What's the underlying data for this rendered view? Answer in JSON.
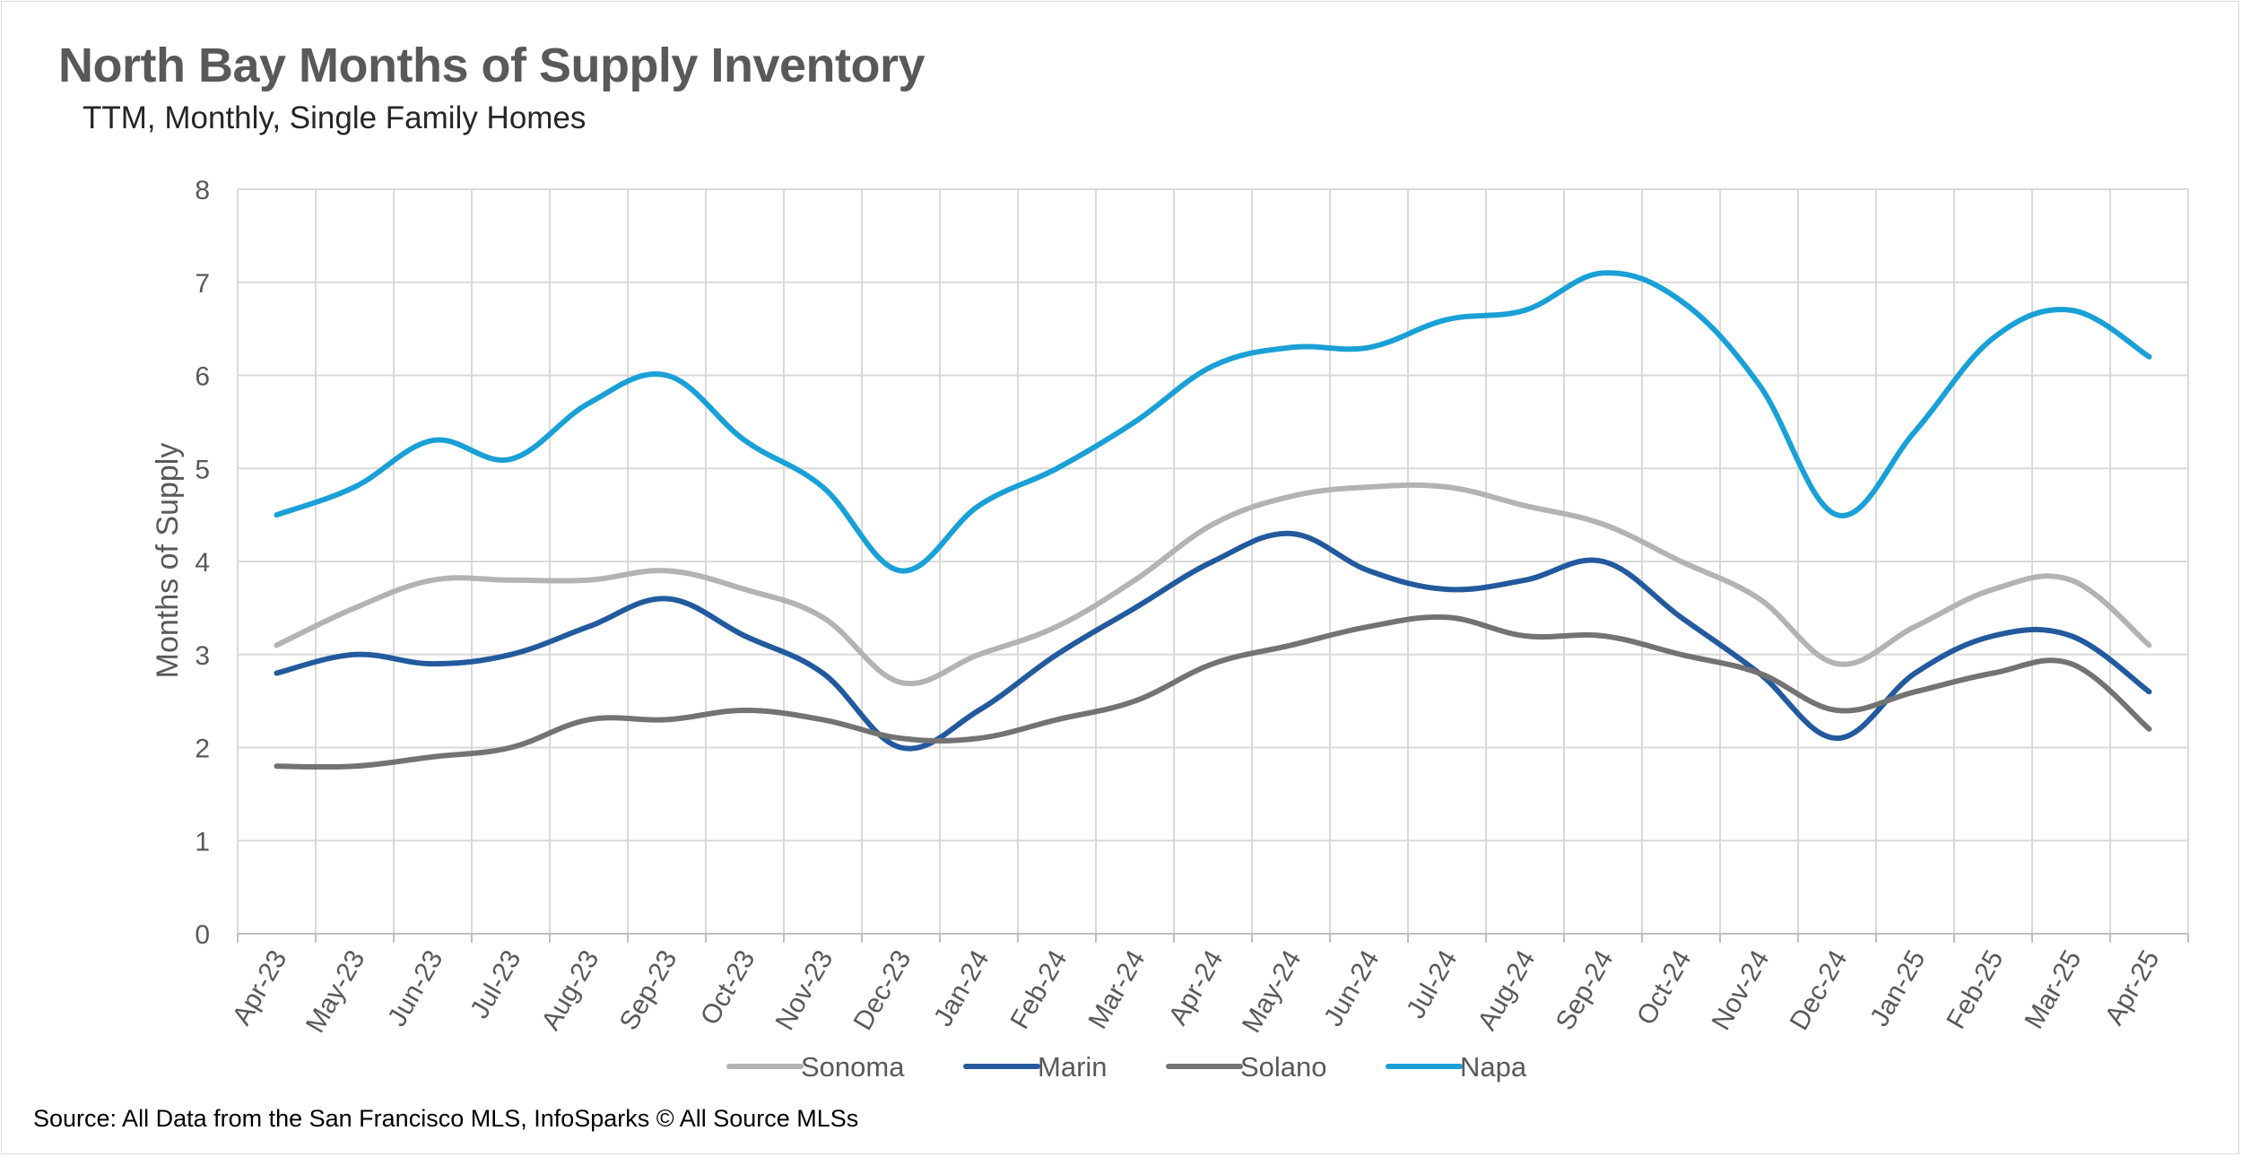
{
  "chart_data": {
    "type": "line",
    "title": "North Bay Months of Supply Inventory",
    "subtitle": "TTM, Monthly, Single Family Homes",
    "ylabel": "Months of Supply",
    "xlabel": "",
    "ylim": [
      0,
      8
    ],
    "yticks": [
      "0",
      "1",
      "2",
      "3",
      "4",
      "5",
      "6",
      "7",
      "8"
    ],
    "grid": true,
    "legend_position": "bottom",
    "categories": [
      "Apr-23",
      "May-23",
      "Jun-23",
      "Jul-23",
      "Aug-23",
      "Sep-23",
      "Oct-23",
      "Nov-23",
      "Dec-23",
      "Jan-24",
      "Feb-24",
      "Mar-24",
      "Apr-24",
      "May-24",
      "Jun-24",
      "Jul-24",
      "Aug-24",
      "Sep-24",
      "Oct-24",
      "Nov-24",
      "Dec-24",
      "Jan-25",
      "Feb-25",
      "Mar-25",
      "Apr-25"
    ],
    "series": [
      {
        "name": "Sonoma",
        "color": "#b3b3b3",
        "values": [
          3.1,
          3.5,
          3.8,
          3.8,
          3.8,
          3.9,
          3.7,
          3.4,
          2.7,
          3.0,
          3.3,
          3.8,
          4.4,
          4.7,
          4.8,
          4.8,
          4.6,
          4.4,
          4.0,
          3.6,
          2.9,
          3.3,
          3.7,
          3.8,
          3.1
        ]
      },
      {
        "name": "Marin",
        "color": "#235a9e",
        "values": [
          2.8,
          3.0,
          2.9,
          3.0,
          3.3,
          3.6,
          3.2,
          2.8,
          2.0,
          2.4,
          3.0,
          3.5,
          4.0,
          4.3,
          3.9,
          3.7,
          3.8,
          4.0,
          3.4,
          2.8,
          2.1,
          2.8,
          3.2,
          3.2,
          2.6
        ]
      },
      {
        "name": "Solano",
        "color": "#737373",
        "values": [
          1.8,
          1.8,
          1.9,
          2.0,
          2.3,
          2.3,
          2.4,
          2.3,
          2.1,
          2.1,
          2.3,
          2.5,
          2.9,
          3.1,
          3.3,
          3.4,
          3.2,
          3.2,
          3.0,
          2.8,
          2.4,
          2.6,
          2.8,
          2.9,
          2.2
        ]
      },
      {
        "name": "Napa",
        "color": "#1aa0d6",
        "values": [
          4.5,
          4.8,
          5.3,
          5.1,
          5.7,
          6.0,
          5.3,
          4.8,
          3.9,
          4.6,
          5.0,
          5.5,
          6.1,
          6.3,
          6.3,
          6.6,
          6.7,
          7.1,
          6.8,
          5.9,
          4.5,
          5.4,
          6.4,
          6.7,
          6.2
        ]
      }
    ]
  },
  "source_note": "Source: All Data from the San Francisco MLS, InfoSparks © All Source MLSs"
}
